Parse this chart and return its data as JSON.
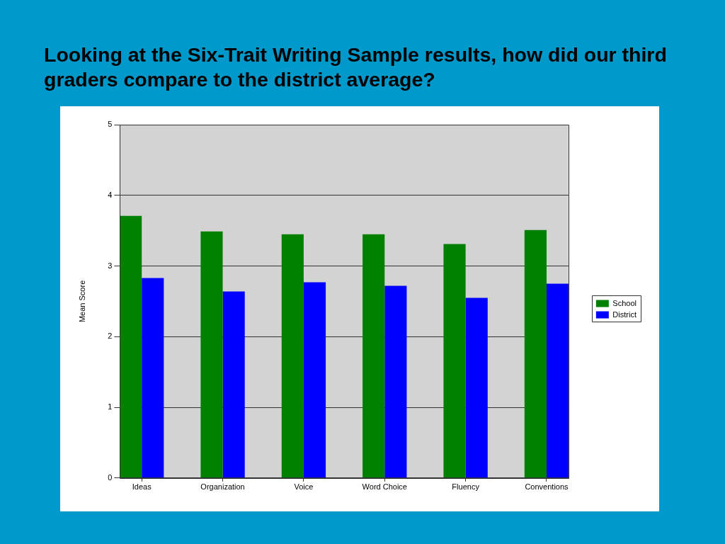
{
  "chart_data": {
    "type": "bar",
    "title": "Looking at the Six-Trait Writing Sample results, how did our third graders compare to the district average?",
    "ylabel": "Mean Score",
    "categories": [
      "Ideas",
      "Organization",
      "Voice",
      "Word Choice",
      "Fluency",
      "Conventions"
    ],
    "series": [
      {
        "name": "School",
        "color": "#008000",
        "values": [
          3.71,
          3.49,
          3.45,
          3.45,
          3.31,
          3.51
        ]
      },
      {
        "name": "District",
        "color": "#0000ff",
        "values": [
          2.83,
          2.64,
          2.77,
          2.72,
          2.55,
          2.75
        ]
      }
    ],
    "ylim": [
      0,
      5
    ],
    "yticks": [
      0,
      1,
      2,
      3,
      4,
      5
    ],
    "grid": "y",
    "legend": "right"
  }
}
